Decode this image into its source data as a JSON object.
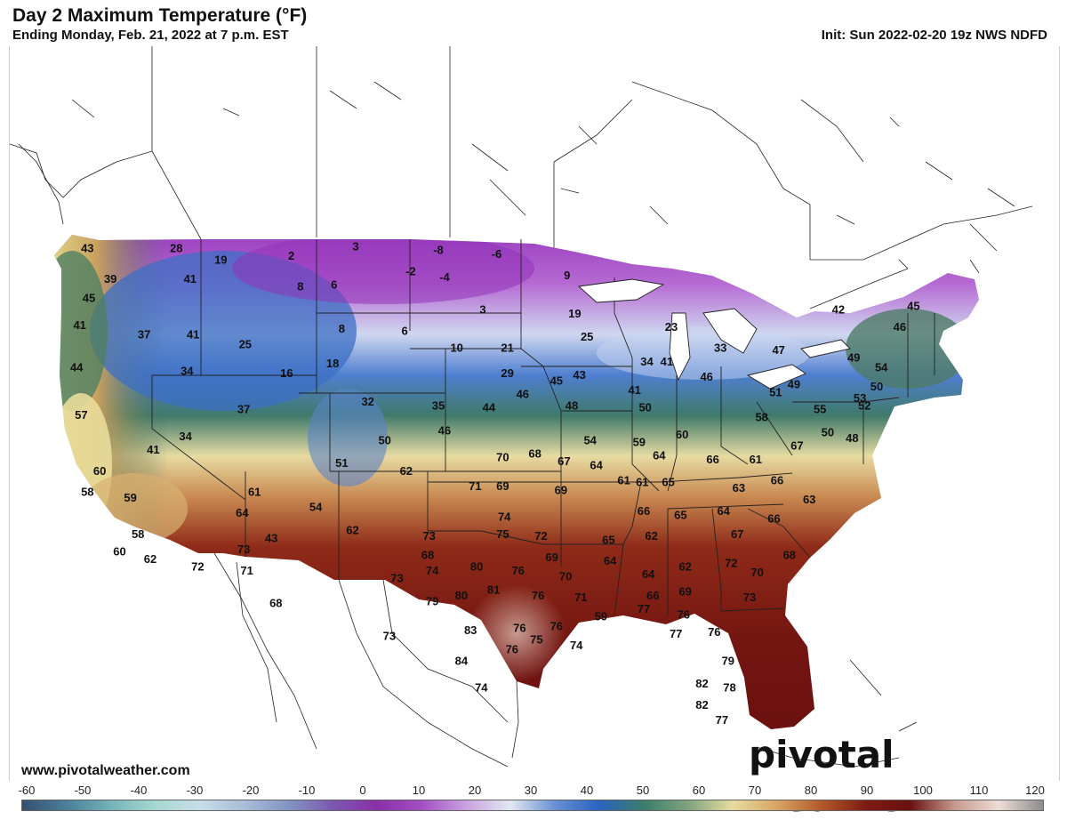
{
  "header": {
    "title": "Day 2 Maximum Temperature (°F)",
    "subtitle": "Ending Monday, Feb. 21, 2022 at 7 p.m. EST",
    "init": "Init: Sun 2022-02-20 19z NWS NDFD"
  },
  "footer": {
    "website": "www.pivotalweather.com",
    "brand": "pivotal weather"
  },
  "colorbar": {
    "ticks": [
      "-60",
      "-50",
      "-40",
      "-30",
      "-20",
      "-10",
      "0",
      "10",
      "20",
      "30",
      "40",
      "50",
      "60",
      "70",
      "80",
      "90",
      "100",
      "110",
      "120"
    ],
    "colors": [
      "#34506e",
      "#4a7f9a",
      "#74b3b8",
      "#a7d7d0",
      "#c7dde8",
      "#a8bdd8",
      "#8294c2",
      "#7b58b0",
      "#8a2fa8",
      "#a24fc2",
      "#c9a2df",
      "#e2e7f2",
      "#6a8fd4",
      "#2a63c0",
      "#3b7d6b",
      "#7fa37d",
      "#e6dca0",
      "#d9a562",
      "#b35a2a",
      "#7e1b12",
      "#6a1010",
      "#c59a8c",
      "#ecdcd6",
      "#8d8d8d"
    ]
  },
  "temperatures": [
    {
      "v": "43",
      "lon": -123.3,
      "lat": 48.5
    },
    {
      "v": "28",
      "lon": -117.5,
      "lat": 48.5
    },
    {
      "v": "19",
      "lon": -114.6,
      "lat": 47.9
    },
    {
      "v": "2",
      "lon": -110.0,
      "lat": 48.1
    },
    {
      "v": "3",
      "lon": -105.8,
      "lat": 48.6
    },
    {
      "v": "-8",
      "lon": -100.4,
      "lat": 48.4
    },
    {
      "v": "-6",
      "lon": -96.6,
      "lat": 48.2
    },
    {
      "v": "39",
      "lon": -121.8,
      "lat": 46.9
    },
    {
      "v": "41",
      "lon": -116.6,
      "lat": 46.9
    },
    {
      "v": "8",
      "lon": -109.4,
      "lat": 46.5
    },
    {
      "v": "6",
      "lon": -107.2,
      "lat": 46.6
    },
    {
      "v": "-2",
      "lon": -102.2,
      "lat": 47.3
    },
    {
      "v": "-4",
      "lon": -100.0,
      "lat": 47.0
    },
    {
      "v": "9",
      "lon": -92.0,
      "lat": 47.1
    },
    {
      "v": "45",
      "lon": -123.2,
      "lat": 45.9
    },
    {
      "v": "3",
      "lon": -97.5,
      "lat": 45.3
    },
    {
      "v": "19",
      "lon": -91.5,
      "lat": 45.1
    },
    {
      "v": "41",
      "lon": -123.8,
      "lat": 44.5
    },
    {
      "v": "37",
      "lon": -119.6,
      "lat": 44.0
    },
    {
      "v": "41",
      "lon": -116.4,
      "lat": 44.0
    },
    {
      "v": "8",
      "lon": -106.7,
      "lat": 44.3
    },
    {
      "v": "6",
      "lon": -102.6,
      "lat": 44.2
    },
    {
      "v": "25",
      "lon": -90.7,
      "lat": 43.9
    },
    {
      "v": "23",
      "lon": -85.2,
      "lat": 44.4
    },
    {
      "v": "25",
      "lon": -113.0,
      "lat": 43.5
    },
    {
      "v": "10",
      "lon": -99.2,
      "lat": 43.3
    },
    {
      "v": "21",
      "lon": -95.9,
      "lat": 43.3
    },
    {
      "v": "33",
      "lon": -82.0,
      "lat": 43.3
    },
    {
      "v": "44",
      "lon": -124.0,
      "lat": 42.3
    },
    {
      "v": "34",
      "lon": -116.8,
      "lat": 42.1
    },
    {
      "v": "16",
      "lon": -110.3,
      "lat": 42.0
    },
    {
      "v": "18",
      "lon": -107.3,
      "lat": 42.5
    },
    {
      "v": "29",
      "lon": -95.9,
      "lat": 42.0
    },
    {
      "v": "43",
      "lon": -91.2,
      "lat": 41.9
    },
    {
      "v": "45",
      "lon": -92.7,
      "lat": 41.6
    },
    {
      "v": "34",
      "lon": -86.8,
      "lat": 42.6
    },
    {
      "v": "41",
      "lon": -85.5,
      "lat": 42.6
    },
    {
      "v": "46",
      "lon": -82.9,
      "lat": 41.8
    },
    {
      "v": "47",
      "lon": -78.2,
      "lat": 43.2
    },
    {
      "v": "42",
      "lon": -74.3,
      "lat": 45.3
    },
    {
      "v": "45",
      "lon": -69.4,
      "lat": 45.5
    },
    {
      "v": "46",
      "lon": -70.3,
      "lat": 44.4
    },
    {
      "v": "49",
      "lon": -73.3,
      "lat": 42.8
    },
    {
      "v": "54",
      "lon": -71.5,
      "lat": 42.3
    },
    {
      "v": "57",
      "lon": -123.7,
      "lat": 39.8
    },
    {
      "v": "37",
      "lon": -113.1,
      "lat": 40.1
    },
    {
      "v": "32",
      "lon": -105.0,
      "lat": 40.5
    },
    {
      "v": "35",
      "lon": -100.4,
      "lat": 40.3
    },
    {
      "v": "44",
      "lon": -97.1,
      "lat": 40.2
    },
    {
      "v": "46",
      "lon": -94.9,
      "lat": 40.9
    },
    {
      "v": "48",
      "lon": -91.7,
      "lat": 40.3
    },
    {
      "v": "41",
      "lon": -87.6,
      "lat": 41.1
    },
    {
      "v": "50",
      "lon": -86.9,
      "lat": 40.2
    },
    {
      "v": "51",
      "lon": -78.4,
      "lat": 41.0
    },
    {
      "v": "49",
      "lon": -77.2,
      "lat": 41.4
    },
    {
      "v": "55",
      "lon": -75.5,
      "lat": 40.1
    },
    {
      "v": "53",
      "lon": -72.9,
      "lat": 40.7
    },
    {
      "v": "50",
      "lon": -71.8,
      "lat": 41.3
    },
    {
      "v": "52",
      "lon": -72.6,
      "lat": 40.3
    },
    {
      "v": "41",
      "lon": -119.0,
      "lat": 38.0
    },
    {
      "v": "34",
      "lon": -116.9,
      "lat": 38.7
    },
    {
      "v": "50",
      "lon": -103.9,
      "lat": 38.5
    },
    {
      "v": "46",
      "lon": -100.0,
      "lat": 39.0
    },
    {
      "v": "54",
      "lon": -90.5,
      "lat": 38.5
    },
    {
      "v": "59",
      "lon": -87.3,
      "lat": 38.4
    },
    {
      "v": "60",
      "lon": -84.5,
      "lat": 38.8
    },
    {
      "v": "58",
      "lon": -79.3,
      "lat": 39.7
    },
    {
      "v": "50",
      "lon": -75.0,
      "lat": 38.9
    },
    {
      "v": "48",
      "lon": -73.4,
      "lat": 38.6
    },
    {
      "v": "60",
      "lon": -122.5,
      "lat": 36.9
    },
    {
      "v": "51",
      "lon": -106.7,
      "lat": 37.3
    },
    {
      "v": "62",
      "lon": -102.5,
      "lat": 36.9
    },
    {
      "v": "70",
      "lon": -96.2,
      "lat": 37.6
    },
    {
      "v": "68",
      "lon": -94.1,
      "lat": 37.8
    },
    {
      "v": "67",
      "lon": -92.2,
      "lat": 37.4
    },
    {
      "v": "64",
      "lon": -90.1,
      "lat": 37.2
    },
    {
      "v": "64",
      "lon": -86.0,
      "lat": 37.7
    },
    {
      "v": "66",
      "lon": -82.5,
      "lat": 37.5
    },
    {
      "v": "61",
      "lon": -79.7,
      "lat": 37.5
    },
    {
      "v": "67",
      "lon": -77.0,
      "lat": 38.2
    },
    {
      "v": "58",
      "lon": -123.3,
      "lat": 35.8
    },
    {
      "v": "59",
      "lon": -120.5,
      "lat": 35.5
    },
    {
      "v": "61",
      "lon": -112.4,
      "lat": 35.8
    },
    {
      "v": "71",
      "lon": -98.0,
      "lat": 36.1
    },
    {
      "v": "69",
      "lon": -96.2,
      "lat": 36.1
    },
    {
      "v": "69",
      "lon": -92.4,
      "lat": 35.9
    },
    {
      "v": "61",
      "lon": -88.3,
      "lat": 36.4
    },
    {
      "v": "61",
      "lon": -87.1,
      "lat": 36.3
    },
    {
      "v": "65",
      "lon": -85.4,
      "lat": 36.3
    },
    {
      "v": "63",
      "lon": -80.8,
      "lat": 36.0
    },
    {
      "v": "66",
      "lon": -78.3,
      "lat": 36.4
    },
    {
      "v": "63",
      "lon": -76.2,
      "lat": 35.4
    },
    {
      "v": "64",
      "lon": -113.2,
      "lat": 34.7
    },
    {
      "v": "54",
      "lon": -108.4,
      "lat": 35.0
    },
    {
      "v": "66",
      "lon": -87.0,
      "lat": 34.8
    },
    {
      "v": "65",
      "lon": -84.6,
      "lat": 34.6
    },
    {
      "v": "64",
      "lon": -81.8,
      "lat": 34.8
    },
    {
      "v": "66",
      "lon": -78.5,
      "lat": 34.4
    },
    {
      "v": "74",
      "lon": -96.1,
      "lat": 34.5
    },
    {
      "v": "58",
      "lon": -120.0,
      "lat": 33.6
    },
    {
      "v": "43",
      "lon": -111.3,
      "lat": 33.4
    },
    {
      "v": "62",
      "lon": -106.0,
      "lat": 33.8
    },
    {
      "v": "73",
      "lon": -101.0,
      "lat": 33.5
    },
    {
      "v": "75",
      "lon": -96.2,
      "lat": 33.6
    },
    {
      "v": "72",
      "lon": -93.7,
      "lat": 33.5
    },
    {
      "v": "65",
      "lon": -89.3,
      "lat": 33.3
    },
    {
      "v": "62",
      "lon": -86.5,
      "lat": 33.5
    },
    {
      "v": "67",
      "lon": -80.9,
      "lat": 33.6
    },
    {
      "v": "60",
      "lon": -121.2,
      "lat": 32.7
    },
    {
      "v": "62",
      "lon": -119.2,
      "lat": 32.3
    },
    {
      "v": "73",
      "lon": -113.1,
      "lat": 32.8
    },
    {
      "v": "68",
      "lon": -101.1,
      "lat": 32.5
    },
    {
      "v": "69",
      "lon": -93.0,
      "lat": 32.4
    },
    {
      "v": "64",
      "lon": -89.2,
      "lat": 32.2
    },
    {
      "v": "68",
      "lon": -77.5,
      "lat": 32.5
    },
    {
      "v": "72",
      "lon": -116.1,
      "lat": 31.9
    },
    {
      "v": "71",
      "lon": -112.9,
      "lat": 31.7
    },
    {
      "v": "73",
      "lon": -103.1,
      "lat": 31.3
    },
    {
      "v": "74",
      "lon": -100.8,
      "lat": 31.7
    },
    {
      "v": "80",
      "lon": -97.9,
      "lat": 31.9
    },
    {
      "v": "76",
      "lon": -95.2,
      "lat": 31.7
    },
    {
      "v": "70",
      "lon": -92.1,
      "lat": 31.4
    },
    {
      "v": "64",
      "lon": -86.7,
      "lat": 31.5
    },
    {
      "v": "62",
      "lon": -84.3,
      "lat": 31.9
    },
    {
      "v": "72",
      "lon": -81.3,
      "lat": 32.1
    },
    {
      "v": "70",
      "lon": -79.6,
      "lat": 31.6
    },
    {
      "v": "68",
      "lon": -111.0,
      "lat": 30.0
    },
    {
      "v": "81",
      "lon": -96.8,
      "lat": 30.7
    },
    {
      "v": "80",
      "lon": -98.9,
      "lat": 30.4
    },
    {
      "v": "79",
      "lon": -100.8,
      "lat": 30.1
    },
    {
      "v": "76",
      "lon": -93.9,
      "lat": 30.4
    },
    {
      "v": "71",
      "lon": -91.1,
      "lat": 30.3
    },
    {
      "v": "66",
      "lon": -86.4,
      "lat": 30.4
    },
    {
      "v": "69",
      "lon": -84.3,
      "lat": 30.6
    },
    {
      "v": "73",
      "lon": -80.1,
      "lat": 30.3
    },
    {
      "v": "76",
      "lon": -84.4,
      "lat": 29.4
    },
    {
      "v": "73",
      "lon": -103.6,
      "lat": 28.3
    },
    {
      "v": "83",
      "lon": -98.3,
      "lat": 28.6
    },
    {
      "v": "76",
      "lon": -95.1,
      "lat": 28.7
    },
    {
      "v": "76",
      "lon": -92.7,
      "lat": 28.8
    },
    {
      "v": "75",
      "lon": -94.0,
      "lat": 28.1
    },
    {
      "v": "76",
      "lon": -95.6,
      "lat": 27.6
    },
    {
      "v": "74",
      "lon": -91.4,
      "lat": 27.8
    },
    {
      "v": "77",
      "lon": -84.9,
      "lat": 28.4
    },
    {
      "v": "76",
      "lon": -82.4,
      "lat": 28.5
    },
    {
      "v": "84",
      "lon": -98.9,
      "lat": 27.0
    },
    {
      "v": "79",
      "lon": -81.5,
      "lat": 27.0
    },
    {
      "v": "74",
      "lon": -97.6,
      "lat": 25.6
    },
    {
      "v": "82",
      "lon": -83.2,
      "lat": 25.8
    },
    {
      "v": "78",
      "lon": -81.4,
      "lat": 25.6
    },
    {
      "v": "82",
      "lon": -83.2,
      "lat": 24.7
    },
    {
      "v": "77",
      "lon": -81.9,
      "lat": 23.9
    },
    {
      "v": "59",
      "lon": -89.8,
      "lat": 29.3
    },
    {
      "v": "77",
      "lon": -87.0,
      "lat": 29.7
    }
  ]
}
